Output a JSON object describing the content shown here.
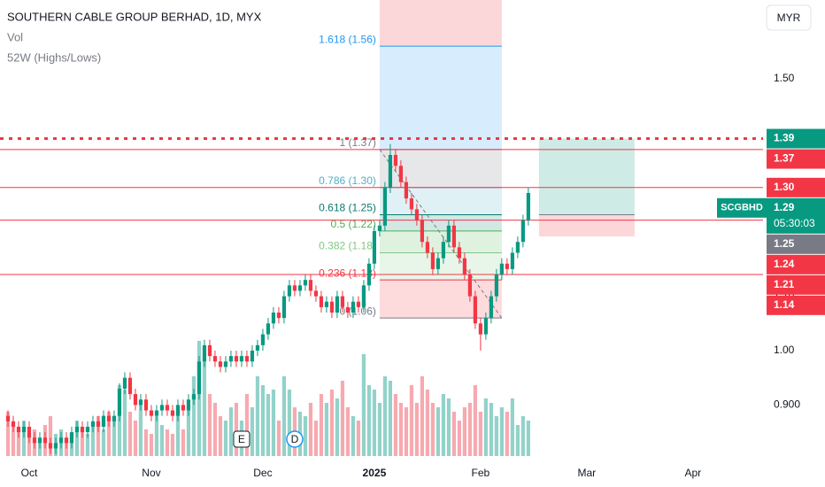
{
  "chart_data": {
    "type": "candlestick",
    "title": "SOUTHERN CABLE GROUP BERHAD, 1D, MYX",
    "indicators": [
      "Vol",
      "52W (Highs/Lows)"
    ],
    "currency": "MYR",
    "symbol": "SCGBHD",
    "countdown": "05:30:03",
    "up_color": "#089981",
    "down_color": "#f23645",
    "volume_up_color": "#92d2c9",
    "volume_down_color": "#f7a9b0",
    "xlim": [
      -1.5,
      142.2
    ],
    "ylim": [
      0.798,
      1.645
    ],
    "vlim": [
      0,
      140
    ],
    "xticks": [
      {
        "value": 4,
        "label": "Oct"
      },
      {
        "value": 27,
        "label": "Nov"
      },
      {
        "value": 48,
        "label": "Dec"
      },
      {
        "value": 69,
        "label": "2025"
      },
      {
        "value": 89,
        "label": "Feb"
      },
      {
        "value": 109,
        "label": "Mar"
      },
      {
        "value": 129,
        "label": "Apr"
      }
    ],
    "yticks": [
      {
        "value": 1.5,
        "label": "1.50"
      },
      {
        "value": 1.1,
        "label": "1.10"
      },
      {
        "value": 1,
        "label": "1.00"
      },
      {
        "value": 0.9,
        "label": "0.900"
      }
    ],
    "candles": {
      "open": [
        0.88,
        0.87,
        0.86,
        0.85,
        0.86,
        0.84,
        0.83,
        0.84,
        0.83,
        0.82,
        0.83,
        0.84,
        0.83,
        0.85,
        0.86,
        0.85,
        0.86,
        0.87,
        0.86,
        0.88,
        0.87,
        0.88,
        0.93,
        0.95,
        0.92,
        0.9,
        0.91,
        0.89,
        0.88,
        0.89,
        0.9,
        0.89,
        0.88,
        0.9,
        0.89,
        0.91,
        0.92,
        0.98,
        1.01,
        0.99,
        0.98,
        0.97,
        0.98,
        0.99,
        0.98,
        0.99,
        0.98,
        1.0,
        1.01,
        1.03,
        1.05,
        1.07,
        1.06,
        1.1,
        1.12,
        1.11,
        1.12,
        1.13,
        1.11,
        1.1,
        1.08,
        1.09,
        1.07,
        1.1,
        1.08,
        1.07,
        1.09,
        1.08,
        1.12,
        1.16,
        1.22,
        1.23,
        1.3,
        1.36,
        1.34,
        1.31,
        1.28,
        1.26,
        1.24,
        1.2,
        1.18,
        1.15,
        1.17,
        1.2,
        1.23,
        1.19,
        1.17,
        1.14,
        1.1,
        1.05,
        1.03,
        1.06,
        1.1,
        1.14,
        1.16,
        1.15,
        1.18,
        1.2,
        1.24
      ],
      "high": [
        0.89,
        0.88,
        0.87,
        0.87,
        0.87,
        0.85,
        0.85,
        0.85,
        0.84,
        0.84,
        0.85,
        0.85,
        0.86,
        0.87,
        0.87,
        0.87,
        0.88,
        0.88,
        0.89,
        0.89,
        0.89,
        0.94,
        0.96,
        0.96,
        0.93,
        0.92,
        0.92,
        0.9,
        0.9,
        0.91,
        0.91,
        0.9,
        0.91,
        0.91,
        0.92,
        0.93,
        0.99,
        1.02,
        1.02,
        1.0,
        0.99,
        0.99,
        1.0,
        1.0,
        1.0,
        1.0,
        1.01,
        1.02,
        1.04,
        1.06,
        1.08,
        1.08,
        1.11,
        1.13,
        1.13,
        1.13,
        1.14,
        1.14,
        1.12,
        1.11,
        1.1,
        1.1,
        1.11,
        1.11,
        1.09,
        1.1,
        1.1,
        1.13,
        1.17,
        1.23,
        1.24,
        1.31,
        1.38,
        1.37,
        1.35,
        1.32,
        1.29,
        1.27,
        1.25,
        1.21,
        1.19,
        1.18,
        1.21,
        1.24,
        1.24,
        1.2,
        1.18,
        1.15,
        1.11,
        1.06,
        1.07,
        1.11,
        1.15,
        1.17,
        1.17,
        1.19,
        1.21,
        1.25,
        1.3
      ],
      "low": [
        0.86,
        0.85,
        0.84,
        0.84,
        0.83,
        0.82,
        0.82,
        0.82,
        0.81,
        0.81,
        0.82,
        0.82,
        0.82,
        0.84,
        0.84,
        0.84,
        0.85,
        0.85,
        0.85,
        0.86,
        0.86,
        0.87,
        0.92,
        0.91,
        0.89,
        0.89,
        0.88,
        0.87,
        0.87,
        0.88,
        0.88,
        0.87,
        0.87,
        0.88,
        0.88,
        0.9,
        0.91,
        0.97,
        0.98,
        0.97,
        0.96,
        0.96,
        0.97,
        0.97,
        0.97,
        0.97,
        0.97,
        0.99,
        1.0,
        1.02,
        1.04,
        1.05,
        1.05,
        1.09,
        1.1,
        1.1,
        1.11,
        1.1,
        1.09,
        1.07,
        1.07,
        1.06,
        1.06,
        1.07,
        1.06,
        1.06,
        1.07,
        1.07,
        1.11,
        1.15,
        1.21,
        1.22,
        1.29,
        1.33,
        1.3,
        1.27,
        1.25,
        1.23,
        1.19,
        1.17,
        1.14,
        1.14,
        1.16,
        1.19,
        1.18,
        1.16,
        1.13,
        1.09,
        1.04,
        1.0,
        1.02,
        1.05,
        1.09,
        1.13,
        1.14,
        1.14,
        1.17,
        1.19,
        1.23
      ],
      "close": [
        0.87,
        0.86,
        0.85,
        0.86,
        0.84,
        0.83,
        0.84,
        0.83,
        0.82,
        0.83,
        0.84,
        0.83,
        0.85,
        0.86,
        0.85,
        0.86,
        0.87,
        0.86,
        0.88,
        0.87,
        0.88,
        0.93,
        0.95,
        0.92,
        0.9,
        0.91,
        0.89,
        0.88,
        0.89,
        0.9,
        0.89,
        0.88,
        0.9,
        0.89,
        0.91,
        0.92,
        0.98,
        1.01,
        0.99,
        0.98,
        0.97,
        0.98,
        0.99,
        0.98,
        0.99,
        0.98,
        1.0,
        1.01,
        1.03,
        1.05,
        1.07,
        1.06,
        1.1,
        1.12,
        1.11,
        1.12,
        1.13,
        1.11,
        1.1,
        1.08,
        1.09,
        1.07,
        1.1,
        1.08,
        1.07,
        1.09,
        1.08,
        1.12,
        1.16,
        1.22,
        1.23,
        1.3,
        1.36,
        1.34,
        1.31,
        1.28,
        1.26,
        1.24,
        1.2,
        1.18,
        1.15,
        1.17,
        1.2,
        1.23,
        1.19,
        1.17,
        1.14,
        1.1,
        1.05,
        1.03,
        1.06,
        1.1,
        1.14,
        1.16,
        1.15,
        1.18,
        1.2,
        1.24,
        1.29
      ]
    },
    "volume": [
      50,
      35,
      30,
      40,
      25,
      30,
      20,
      35,
      45,
      25,
      30,
      20,
      25,
      40,
      30,
      25,
      35,
      45,
      30,
      50,
      40,
      80,
      75,
      50,
      40,
      60,
      30,
      25,
      45,
      35,
      30,
      25,
      50,
      30,
      55,
      90,
      130,
      110,
      70,
      60,
      45,
      40,
      55,
      60,
      40,
      70,
      55,
      90,
      80,
      70,
      75,
      40,
      90,
      75,
      55,
      50,
      45,
      60,
      40,
      70,
      60,
      75,
      65,
      85,
      55,
      45,
      40,
      115,
      80,
      75,
      60,
      90,
      85,
      70,
      60,
      55,
      80,
      60,
      90,
      75,
      60,
      55,
      70,
      65,
      50,
      40,
      55,
      60,
      80,
      50,
      65,
      60,
      45,
      55,
      50,
      65,
      35,
      45,
      40
    ],
    "fib": {
      "x": [
        70,
        93
      ],
      "levels": [
        {
          "label": "1.618 (1.56)",
          "value": 1.56,
          "color": "#2196f3"
        },
        {
          "label": "1 (1.37)",
          "value": 1.37,
          "color": "#787b86"
        },
        {
          "label": "0.786 (1.30)",
          "value": 1.3,
          "color": "#4fb0c6"
        },
        {
          "label": "0.618 (1.25)",
          "value": 1.25,
          "color": "#0b7a6e"
        },
        {
          "label": "0.5 (1.22)",
          "value": 1.22,
          "color": "#4caf50"
        },
        {
          "label": "0.382 (1.18)",
          "value": 1.18,
          "color": "#81c784"
        },
        {
          "label": "0.236 (1.13)",
          "value": 1.13,
          "color": "#f23645"
        },
        {
          "label": "0 (1.06)",
          "value": 1.06,
          "color": "#787b86"
        }
      ]
    },
    "position": {
      "x": [
        100,
        118
      ],
      "target": 1.39,
      "entry": 1.25,
      "stop": 1.21
    },
    "lines": [
      1.37,
      1.3,
      1.24,
      1.14
    ],
    "dotted_line": 1.39,
    "events": [
      {
        "label": "E",
        "x": 44
      },
      {
        "label": "D",
        "x": 54
      }
    ],
    "badges": [
      {
        "value": 1.39,
        "label": "1.39",
        "color": "#089981"
      },
      {
        "value": 1.37,
        "label": "1.37",
        "color": "#f23645"
      },
      {
        "value": 1.3,
        "label": "1.30",
        "color": "#f23645"
      },
      {
        "value": 1.29,
        "label": "1.29",
        "color": "#089981"
      },
      {
        "value": 1.25,
        "label": "1.25",
        "color": "#787b86"
      },
      {
        "value": 1.24,
        "label": "1.24",
        "color": "#f23645"
      },
      {
        "value": 1.21,
        "label": "1.21",
        "color": "#f23645"
      },
      {
        "value": 1.14,
        "label": "1.14",
        "color": "#f23645"
      }
    ],
    "last_badge": 3
  }
}
